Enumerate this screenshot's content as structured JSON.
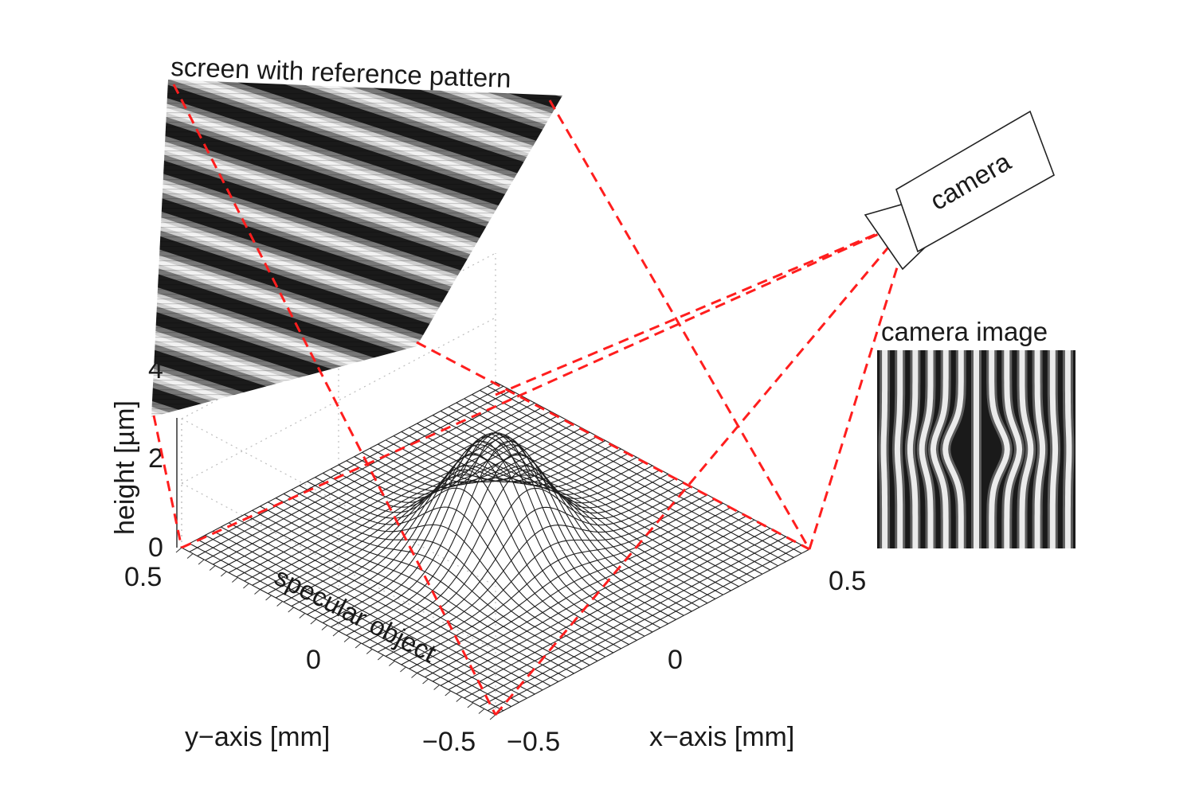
{
  "labels": {
    "screen": "screen with reference pattern",
    "camera": "camera",
    "camera_image": "camera image",
    "specular_object": "specular object",
    "zlabel": "height [µm]",
    "xlabel": "x−axis [mm]",
    "ylabel": "y−axis [mm]"
  },
  "ticks": {
    "z": [
      "0",
      "2",
      "4"
    ],
    "y": [
      "0.5",
      "0",
      "−0.5"
    ],
    "x": [
      "−0.5",
      "0",
      "0.5"
    ]
  },
  "surface": {
    "type": "gaussian bump",
    "peak_height_um": 3.5,
    "x_range_mm": [
      -0.5,
      0.5
    ],
    "y_range_mm": [
      -0.5,
      0.5
    ],
    "z_range_um": [
      0,
      4
    ]
  },
  "colors": {
    "rays": "#ff1e1e",
    "mesh": "#1f1f1f",
    "fringe_dark": "#1a1a1a",
    "fringe_light": "#f2f2f2"
  }
}
